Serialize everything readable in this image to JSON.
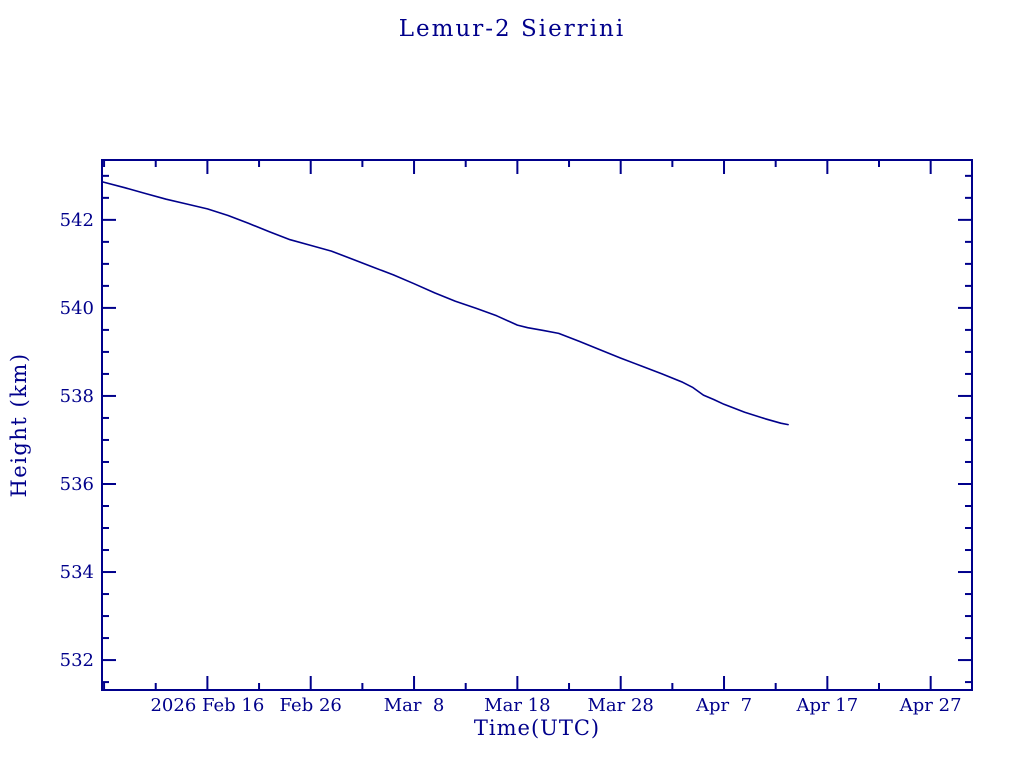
{
  "window": {
    "background": "#ffffff",
    "accent_color": "#00008B"
  },
  "chart_data": {
    "type": "line",
    "title": "Lemur-2 Sierrini",
    "xlabel": "Time(UTC)",
    "ylabel": "Height (km)",
    "grid": false,
    "legend": false,
    "line_color": "#00008B",
    "axis_color": "#00008B",
    "x_axis": {
      "unit": "days relative to 2026 Feb 16 UTC",
      "range": [
        -10.2,
        74.0
      ],
      "minor_tick_step": 5,
      "major_ticks": [
        {
          "value": 0,
          "label": "2026 Feb 16"
        },
        {
          "value": 10,
          "label": "Feb 26"
        },
        {
          "value": 20,
          "label": "Mar  8"
        },
        {
          "value": 30,
          "label": "Mar 18"
        },
        {
          "value": 40,
          "label": "Mar 28"
        },
        {
          "value": 50,
          "label": "Apr  7"
        },
        {
          "value": 60,
          "label": "Apr 17"
        },
        {
          "value": 70,
          "label": "Apr 27"
        }
      ]
    },
    "y_axis": {
      "unit": "km",
      "range": [
        531.32,
        543.36
      ],
      "minor_tick_step": 0.5,
      "major_ticks": [
        {
          "value": 532,
          "label": "532"
        },
        {
          "value": 534,
          "label": "534"
        },
        {
          "value": 536,
          "label": "536"
        },
        {
          "value": 538,
          "label": "538"
        },
        {
          "value": 540,
          "label": "540"
        },
        {
          "value": 542,
          "label": "542"
        }
      ]
    },
    "series": [
      {
        "name": "orbit-height",
        "points": [
          [
            -10.1,
            542.86
          ],
          [
            -8,
            542.73
          ],
          [
            -6,
            542.6
          ],
          [
            -4,
            542.47
          ],
          [
            -2,
            542.36
          ],
          [
            0,
            542.25
          ],
          [
            2,
            542.1
          ],
          [
            4,
            541.92
          ],
          [
            6,
            541.73
          ],
          [
            8,
            541.55
          ],
          [
            10,
            541.42
          ],
          [
            12,
            541.29
          ],
          [
            14,
            541.11
          ],
          [
            16,
            540.93
          ],
          [
            18,
            540.75
          ],
          [
            20,
            540.55
          ],
          [
            22,
            540.34
          ],
          [
            24,
            540.15
          ],
          [
            26,
            539.99
          ],
          [
            28,
            539.82
          ],
          [
            30,
            539.61
          ],
          [
            31,
            539.55
          ],
          [
            32.5,
            539.49
          ],
          [
            34,
            539.42
          ],
          [
            36,
            539.24
          ],
          [
            38,
            539.05
          ],
          [
            40,
            538.86
          ],
          [
            42,
            538.68
          ],
          [
            44,
            538.5
          ],
          [
            46,
            538.31
          ],
          [
            47,
            538.19
          ],
          [
            48,
            538.02
          ],
          [
            49,
            537.92
          ],
          [
            50,
            537.81
          ],
          [
            52,
            537.63
          ],
          [
            54,
            537.48
          ],
          [
            55.5,
            537.38
          ],
          [
            56.2,
            537.35
          ]
        ]
      }
    ]
  }
}
